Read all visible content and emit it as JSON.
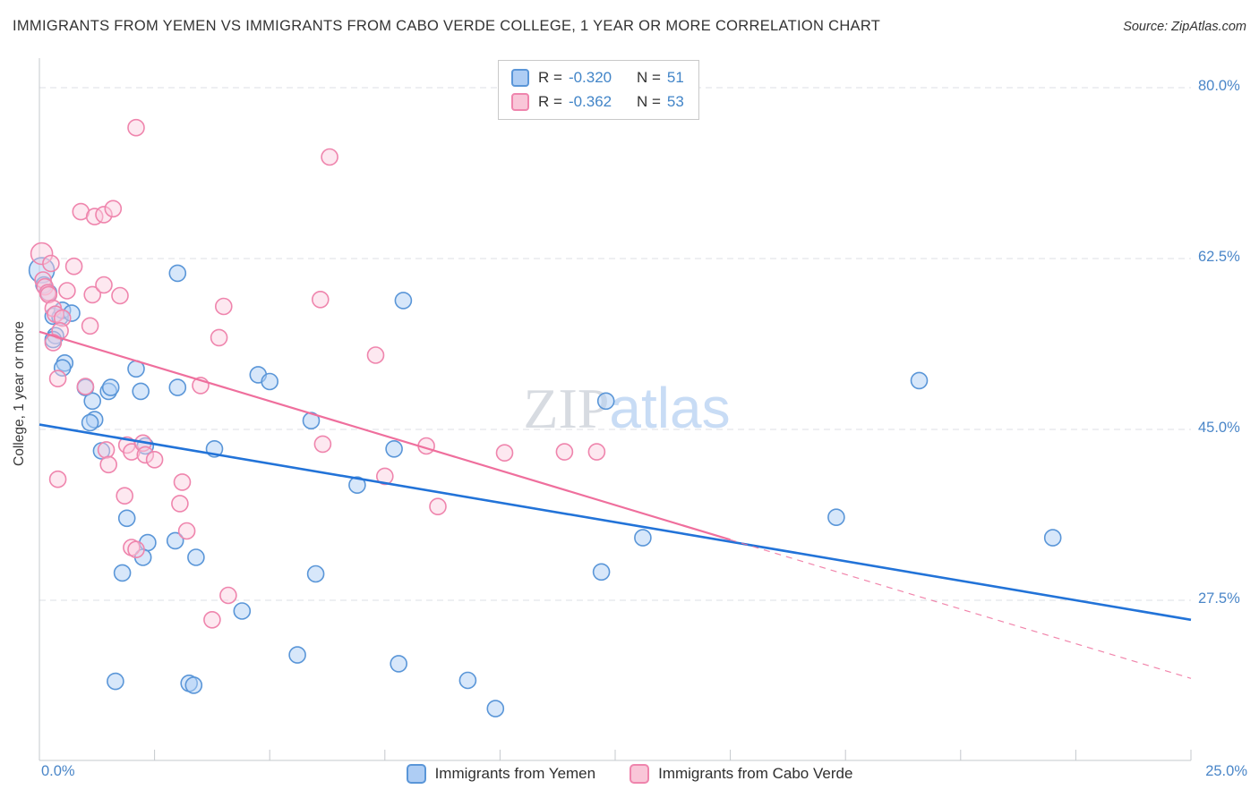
{
  "header": {
    "title": "IMMIGRANTS FROM YEMEN VS IMMIGRANTS FROM CABO VERDE COLLEGE, 1 YEAR OR MORE CORRELATION CHART",
    "source": "Source: ZipAtlas.com"
  },
  "watermark": {
    "part1": "ZIP",
    "part2": "atlas"
  },
  "legend_box": {
    "rows": [
      {
        "r_label": "R =",
        "r_value": "-0.320",
        "n_label": "N =",
        "n_value": "51"
      },
      {
        "r_label": "R =",
        "r_value": "-0.362",
        "n_label": "N =",
        "n_value": "53"
      }
    ]
  },
  "chart_data": {
    "type": "scatter",
    "title": "Immigrants from Yemen vs Immigrants from Cabo Verde College, 1 year or more",
    "ylabel": "College, 1 year or more",
    "xlim": [
      0,
      25
    ],
    "ylim": [
      11,
      83
    ],
    "grid": "horizontal-dashed",
    "x_axis_labels": {
      "min": "0.0%",
      "max": "25.0%"
    },
    "x_tick_positions": [
      2.5,
      5,
      7.5,
      10,
      12.5,
      15,
      17.5,
      20,
      22.5,
      25
    ],
    "y_ticks": [
      {
        "value": 80.0,
        "label": "80.0%"
      },
      {
        "value": 62.5,
        "label": "62.5%"
      },
      {
        "value": 45.0,
        "label": "45.0%"
      },
      {
        "value": 27.5,
        "label": "27.5%"
      }
    ],
    "series": [
      {
        "name": "Immigrants from Yemen",
        "r": -0.32,
        "n": 51,
        "fill": "rgba(176,208,246,0.5)",
        "stroke": "#5a96d8",
        "trend": {
          "y_start": 45.5,
          "y_end": 25.5,
          "color": "#2273d8",
          "width": 2.6
        },
        "points": [
          [
            0.05,
            61.3,
            14
          ],
          [
            0.1,
            59.8
          ],
          [
            0.2,
            59.0
          ],
          [
            0.3,
            56.6
          ],
          [
            0.45,
            56.5
          ],
          [
            0.5,
            57.2
          ],
          [
            0.35,
            54.6
          ],
          [
            0.3,
            54.2
          ],
          [
            0.55,
            51.8
          ],
          [
            0.5,
            51.3
          ],
          [
            0.7,
            56.9
          ],
          [
            1.0,
            49.3
          ],
          [
            1.15,
            47.9
          ],
          [
            1.2,
            46.0
          ],
          [
            1.1,
            45.7
          ],
          [
            1.35,
            42.8
          ],
          [
            1.5,
            48.9
          ],
          [
            1.55,
            49.3
          ],
          [
            1.9,
            35.9
          ],
          [
            1.8,
            30.3
          ],
          [
            1.65,
            19.2
          ],
          [
            2.1,
            51.2
          ],
          [
            2.2,
            48.9
          ],
          [
            2.3,
            43.3
          ],
          [
            2.35,
            33.4
          ],
          [
            2.25,
            31.9
          ],
          [
            3.0,
            61.0
          ],
          [
            3.0,
            49.3
          ],
          [
            2.95,
            33.6
          ],
          [
            3.25,
            19.0
          ],
          [
            3.35,
            18.8
          ],
          [
            3.4,
            31.9
          ],
          [
            3.8,
            43.0
          ],
          [
            4.4,
            26.4
          ],
          [
            4.75,
            50.6
          ],
          [
            5.0,
            49.9
          ],
          [
            5.6,
            21.9
          ],
          [
            5.9,
            45.9
          ],
          [
            6.0,
            30.2
          ],
          [
            6.9,
            39.3
          ],
          [
            7.7,
            43.0
          ],
          [
            7.8,
            21.0
          ],
          [
            7.9,
            58.2
          ],
          [
            9.3,
            19.3
          ],
          [
            9.9,
            16.4
          ],
          [
            12.2,
            30.4
          ],
          [
            12.3,
            47.9
          ],
          [
            13.1,
            33.9
          ],
          [
            17.3,
            36.0
          ],
          [
            19.1,
            50.0
          ],
          [
            22.0,
            33.9
          ]
        ]
      },
      {
        "name": "Immigrants from Cabo Verde",
        "r": -0.362,
        "n": 53,
        "fill": "rgba(250,205,221,0.45)",
        "stroke": "#ef85ad",
        "trend": {
          "y_start": 55.0,
          "y_end": 19.5,
          "color": "#ef6f9d",
          "width": 2.2,
          "solid_until": 15
        },
        "points": [
          [
            0.05,
            63.0,
            12
          ],
          [
            0.08,
            60.3
          ],
          [
            0.12,
            59.6
          ],
          [
            0.18,
            59.0
          ],
          [
            0.25,
            62.0
          ],
          [
            0.2,
            58.8
          ],
          [
            0.3,
            57.4
          ],
          [
            0.35,
            56.8
          ],
          [
            0.5,
            56.4
          ],
          [
            0.45,
            55.1
          ],
          [
            0.3,
            53.9
          ],
          [
            0.6,
            59.2
          ],
          [
            0.75,
            61.7
          ],
          [
            0.9,
            67.3
          ],
          [
            1.2,
            66.8
          ],
          [
            1.4,
            67.0
          ],
          [
            1.6,
            67.6
          ],
          [
            2.1,
            75.9
          ],
          [
            6.3,
            72.9
          ],
          [
            1.15,
            58.8
          ],
          [
            1.75,
            58.7
          ],
          [
            1.1,
            55.6
          ],
          [
            1.4,
            59.8
          ],
          [
            0.4,
            50.2
          ],
          [
            1.0,
            49.4
          ],
          [
            0.4,
            39.9
          ],
          [
            1.45,
            42.9
          ],
          [
            1.9,
            43.4
          ],
          [
            2.0,
            42.7
          ],
          [
            2.25,
            43.6
          ],
          [
            2.3,
            42.4
          ],
          [
            1.5,
            41.4
          ],
          [
            1.85,
            38.2
          ],
          [
            2.0,
            32.9
          ],
          [
            2.1,
            32.7
          ],
          [
            2.5,
            41.9
          ],
          [
            3.1,
            39.6
          ],
          [
            3.05,
            37.4
          ],
          [
            3.2,
            34.6
          ],
          [
            3.5,
            49.5
          ],
          [
            4.0,
            57.6
          ],
          [
            3.9,
            54.4
          ],
          [
            4.1,
            28.0
          ],
          [
            3.75,
            25.5
          ],
          [
            6.1,
            58.3
          ],
          [
            7.3,
            52.6
          ],
          [
            6.15,
            43.5
          ],
          [
            7.5,
            40.2
          ],
          [
            8.4,
            43.3
          ],
          [
            8.65,
            37.1
          ],
          [
            10.1,
            42.6
          ],
          [
            11.4,
            42.7
          ],
          [
            12.1,
            42.7
          ]
        ]
      }
    ]
  },
  "bottom_legend": {
    "items": [
      {
        "label": "Immigrants from Yemen"
      },
      {
        "label": "Immigrants from Cabo Verde"
      }
    ]
  }
}
